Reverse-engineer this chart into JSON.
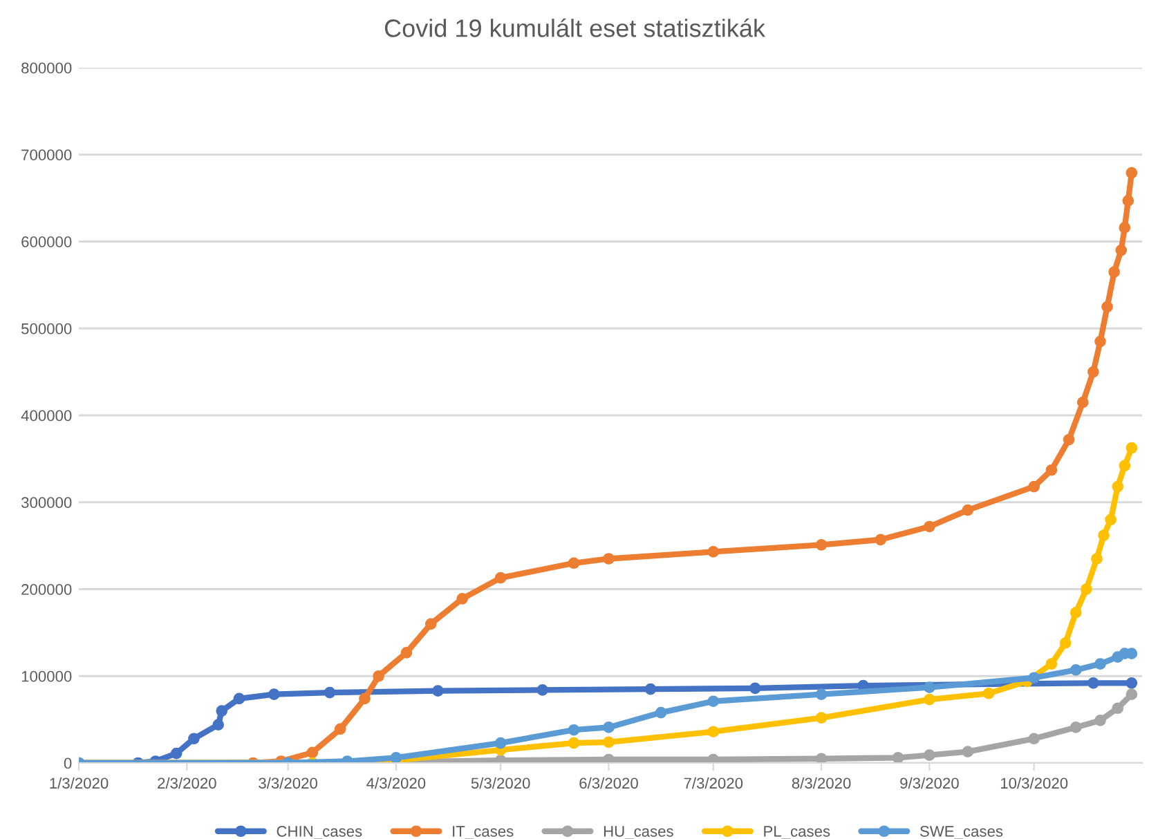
{
  "chart_data": {
    "type": "line",
    "title": "Covid 19 kumulált eset statisztikák",
    "xlim": [
      "2020-01-03",
      "2020-11-03"
    ],
    "xticks": [
      {
        "value": "2020-01-03",
        "label": "1/3/2020"
      },
      {
        "value": "2020-02-03",
        "label": "2/3/2020"
      },
      {
        "value": "2020-03-03",
        "label": "3/3/2020"
      },
      {
        "value": "2020-04-03",
        "label": "4/3/2020"
      },
      {
        "value": "2020-05-03",
        "label": "5/3/2020"
      },
      {
        "value": "2020-06-03",
        "label": "6/3/2020"
      },
      {
        "value": "2020-07-03",
        "label": "7/3/2020"
      },
      {
        "value": "2020-08-03",
        "label": "8/3/2020"
      },
      {
        "value": "2020-09-03",
        "label": "9/3/2020"
      },
      {
        "value": "2020-10-03",
        "label": "10/3/2020"
      }
    ],
    "ylim": [
      0,
      800000
    ],
    "yticks": [
      0,
      100000,
      200000,
      300000,
      400000,
      500000,
      600000,
      700000,
      800000
    ],
    "grid": "y",
    "legend": "bottom",
    "marker": "circle",
    "line_style": "solid",
    "series": [
      {
        "name": "CHIN_cases",
        "color": "#4472c4",
        "x": [
          "2020-01-03",
          "2020-01-20",
          "2020-01-25",
          "2020-01-31",
          "2020-02-05",
          "2020-02-12",
          "2020-02-13",
          "2020-02-18",
          "2020-02-28",
          "2020-03-15",
          "2020-04-15",
          "2020-05-15",
          "2020-06-15",
          "2020-07-15",
          "2020-08-15",
          "2020-09-25",
          "2020-10-20",
          "2020-10-31"
        ],
        "values": [
          0,
          0,
          2000,
          11000,
          28000,
          44000,
          60000,
          74000,
          79000,
          81000,
          83000,
          84000,
          85000,
          86000,
          89000,
          91000,
          92000,
          92000
        ]
      },
      {
        "name": "IT_cases",
        "color": "#ed7d31",
        "x": [
          "2020-01-03",
          "2020-02-22",
          "2020-03-01",
          "2020-03-10",
          "2020-03-18",
          "2020-03-25",
          "2020-03-29",
          "2020-04-06",
          "2020-04-13",
          "2020-04-22",
          "2020-05-03",
          "2020-05-24",
          "2020-06-03",
          "2020-07-03",
          "2020-08-03",
          "2020-08-20",
          "2020-09-03",
          "2020-09-14",
          "2020-10-03",
          "2020-10-08",
          "2020-10-13",
          "2020-10-17",
          "2020-10-20",
          "2020-10-22",
          "2020-10-24",
          "2020-10-26",
          "2020-10-28",
          "2020-10-29",
          "2020-10-30",
          "2020-10-31"
        ],
        "values": [
          0,
          0,
          2000,
          12000,
          39000,
          74000,
          100000,
          127000,
          160000,
          189000,
          213000,
          230000,
          235000,
          243000,
          251000,
          257000,
          272000,
          291000,
          318000,
          337000,
          372000,
          415000,
          450000,
          485000,
          525000,
          565000,
          590000,
          616000,
          647000,
          679000
        ]
      },
      {
        "name": "HU_cases",
        "color": "#a5a5a5",
        "x": [
          "2020-01-03",
          "2020-04-03",
          "2020-05-03",
          "2020-06-03",
          "2020-07-03",
          "2020-08-03",
          "2020-08-25",
          "2020-09-03",
          "2020-09-14",
          "2020-10-03",
          "2020-10-15",
          "2020-10-22",
          "2020-10-27",
          "2020-10-31"
        ],
        "values": [
          0,
          1000,
          3000,
          4000,
          4000,
          5000,
          6000,
          9000,
          13000,
          28000,
          41000,
          49000,
          63000,
          79000
        ]
      },
      {
        "name": "PL_cases",
        "color": "#ffc000",
        "x": [
          "2020-01-03",
          "2020-03-10",
          "2020-04-03",
          "2020-05-03",
          "2020-05-24",
          "2020-06-03",
          "2020-07-03",
          "2020-08-03",
          "2020-09-03",
          "2020-09-20",
          "2020-10-01",
          "2020-10-08",
          "2020-10-12",
          "2020-10-15",
          "2020-10-18",
          "2020-10-21",
          "2020-10-23",
          "2020-10-25",
          "2020-10-27",
          "2020-10-29",
          "2020-10-31"
        ],
        "values": [
          0,
          0,
          3000,
          15000,
          23000,
          24000,
          36000,
          52000,
          73000,
          80000,
          94000,
          114000,
          138000,
          173000,
          200000,
          235000,
          262000,
          280000,
          318000,
          342000,
          362500
        ]
      },
      {
        "name": "SWE_cases",
        "color": "#5b9bd5",
        "x": [
          "2020-01-03",
          "2020-03-03",
          "2020-03-20",
          "2020-04-03",
          "2020-05-03",
          "2020-05-24",
          "2020-06-03",
          "2020-06-18",
          "2020-07-03",
          "2020-08-03",
          "2020-09-03",
          "2020-10-03",
          "2020-10-15",
          "2020-10-22",
          "2020-10-27",
          "2020-10-29",
          "2020-10-31"
        ],
        "values": [
          0,
          0,
          2000,
          6000,
          23000,
          38000,
          41000,
          58000,
          71000,
          79000,
          87000,
          98000,
          107000,
          114000,
          122000,
          126000,
          126000
        ]
      }
    ]
  }
}
